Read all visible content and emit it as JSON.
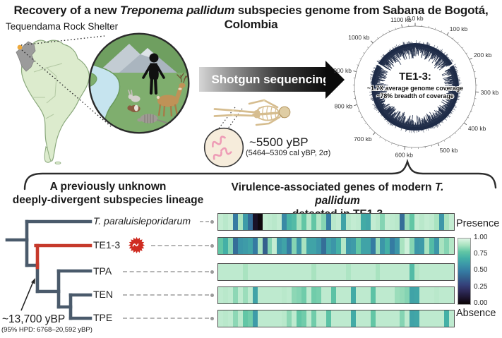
{
  "title": {
    "part1": "Recovery of a new ",
    "part2_italic": "Treponema pallidum",
    "part3": " subspecies genome from Sabana de Bogotá, Colombia"
  },
  "map_panel": {
    "label": "Tequendama Rock Shelter"
  },
  "sequencing": {
    "arrow_label": "Shotgun sequencing"
  },
  "sample": {
    "age": "~5500 yBP",
    "age_detail": "(5464–5309 cal yBP, 2σ)"
  },
  "genome_plot": {
    "center_title": "TE1-3:",
    "coverage_line1": "~1.7X average genome coverage",
    "coverage_line2": "~78% breadth of coverage",
    "tick_labels": [
      "0.0 kb",
      "100 kb",
      "200 kb",
      "300 kb",
      "400 kb",
      "500 kb",
      "600 kb",
      "700 kb",
      "800 kb",
      "900 kb",
      "1000 kb",
      "1100 kb"
    ]
  },
  "phylogeny": {
    "heading_line1": "A previously unknown",
    "heading_line2": "deeply-divergent subspecies lineage",
    "taxa": [
      {
        "name": "T. paraluisleporidarum",
        "italic": true,
        "highlight": false
      },
      {
        "name": "TE1-3",
        "italic": false,
        "highlight": true
      },
      {
        "name": "TPA",
        "italic": false,
        "highlight": false
      },
      {
        "name": "TEN",
        "italic": false,
        "highlight": false
      },
      {
        "name": "TPE",
        "italic": false,
        "highlight": false
      }
    ],
    "node_annotation": {
      "line1": "~13,700 yBP",
      "line2": "(95% HPD: 6768–20,592 yBP)"
    }
  },
  "heatmap": {
    "title_part1": "Virulence-associated genes of modern ",
    "title_part2_italic": "T. pallidum",
    "title_line2": "detected in TE1-3",
    "legend": {
      "top_label": "Presence",
      "bottom_label": "Absence",
      "ticks": [
        "1.00",
        "0.75",
        "0.50",
        "0.25",
        "0.00"
      ]
    }
  },
  "chart_data": [
    {
      "type": "heatmap",
      "title": "Virulence-associated genes of modern T. pallidum detected in TE1-3",
      "rows": [
        "T. paraluisleporidarum",
        "TE1-3",
        "TPA",
        "TEN",
        "TPE"
      ],
      "colormap": "mako",
      "scale": {
        "min": 0,
        "max": 1,
        "max_label": "Presence",
        "min_label": "Absence",
        "legend_ticks": [
          1.0,
          0.75,
          0.5,
          0.25,
          0.0
        ],
        "legend_position": "right"
      },
      "values": [
        [
          0.95,
          0.93,
          0.95,
          0.5,
          0.9,
          0.62,
          0.45,
          0.08,
          0.02,
          0.95,
          0.94,
          0.93,
          0.95,
          0.55,
          0.72,
          0.75,
          0.9,
          0.8,
          0.93,
          0.8,
          0.92,
          0.85,
          0.5,
          0.93,
          0.95,
          0.65,
          0.93,
          0.95,
          0.94,
          0.68,
          0.66,
          0.95,
          0.93,
          0.85,
          0.95,
          0.94,
          0.93,
          0.45,
          0.88,
          0.8,
          0.95,
          0.93,
          0.95,
          0.94,
          0.9,
          0.6,
          0.9,
          0.95
        ],
        [
          0.8,
          0.7,
          0.85,
          0.45,
          0.6,
          0.62,
          0.65,
          0.5,
          0.9,
          0.4,
          0.85,
          0.95,
          0.6,
          0.65,
          0.5,
          0.85,
          0.6,
          0.9,
          0.65,
          0.65,
          0.6,
          0.45,
          0.65,
          0.6,
          0.7,
          0.92,
          0.6,
          0.62,
          0.8,
          0.65,
          0.65,
          0.5,
          0.88,
          0.6,
          0.7,
          0.5,
          0.6,
          0.9,
          0.97,
          0.85,
          0.6,
          0.62,
          0.9,
          0.75,
          0.6,
          0.9,
          0.85,
          0.92
        ],
        [
          0.94,
          0.94,
          0.94,
          0.94,
          0.94,
          0.9,
          0.94,
          0.94,
          0.94,
          0.94,
          0.94,
          0.94,
          0.94,
          0.94,
          0.94,
          0.94,
          0.94,
          0.94,
          0.94,
          0.9,
          0.94,
          0.94,
          0.94,
          0.94,
          0.94,
          0.94,
          0.91,
          0.94,
          0.94,
          0.94,
          0.94,
          0.94,
          0.9,
          0.94,
          0.94,
          0.94,
          0.94,
          0.94,
          0.94,
          0.75,
          0.92,
          0.94,
          0.94,
          0.94,
          0.94,
          0.94,
          0.94,
          0.94
        ],
        [
          0.94,
          0.93,
          0.94,
          0.86,
          0.94,
          0.88,
          0.94,
          0.65,
          0.94,
          0.94,
          0.94,
          0.94,
          0.94,
          0.93,
          0.94,
          0.86,
          0.85,
          0.82,
          0.94,
          0.82,
          0.83,
          0.94,
          0.94,
          0.78,
          0.94,
          0.94,
          0.94,
          0.68,
          0.94,
          0.94,
          0.94,
          0.78,
          0.94,
          0.94,
          0.94,
          0.94,
          0.88,
          0.87,
          0.85,
          0.65,
          0.66,
          0.94,
          0.94,
          0.94,
          0.93,
          0.94,
          0.94,
          0.94
        ],
        [
          0.94,
          0.93,
          0.94,
          0.86,
          0.93,
          0.8,
          0.82,
          0.62,
          0.94,
          0.94,
          0.94,
          0.94,
          0.94,
          0.93,
          0.86,
          0.94,
          0.8,
          0.82,
          0.94,
          0.82,
          0.94,
          0.94,
          0.78,
          0.94,
          0.94,
          0.94,
          0.94,
          0.68,
          0.94,
          0.94,
          0.94,
          0.8,
          0.94,
          0.94,
          0.94,
          0.94,
          0.94,
          0.85,
          0.94,
          0.65,
          0.66,
          0.94,
          0.94,
          0.94,
          0.94,
          0.94,
          0.7,
          0.94
        ]
      ]
    },
    {
      "type": "circular-coverage",
      "title": "TE1-3:",
      "annotations": [
        "~1.7X average genome coverage",
        "~78% breadth of coverage"
      ],
      "axis_tick_labels": [
        "0.0 kb",
        "100 kb",
        "200 kb",
        "300 kb",
        "400 kb",
        "500 kb",
        "600 kb",
        "700 kb",
        "800 kb",
        "900 kb",
        "1000 kb",
        "1100 kb"
      ]
    }
  ],
  "colors": {
    "accent_red": "#c6392b",
    "tree_branch": "#4a5a6b",
    "ring_navy": "#1e2b47",
    "map_green": "#dcebcd",
    "highlight_gray": "#9b9b9b",
    "site_dot": "#eea93c",
    "river_blue": "#c6e4ef",
    "grass_green": "#79a86a",
    "mountain_gray": "#aab5bf",
    "bone": "#d6bd8f",
    "spirochete_pink": "#ee9cb6",
    "heatmap_low": "#0b0405",
    "heatmap_mid": "#357ba2",
    "heatmap_high": "#def5e5"
  }
}
